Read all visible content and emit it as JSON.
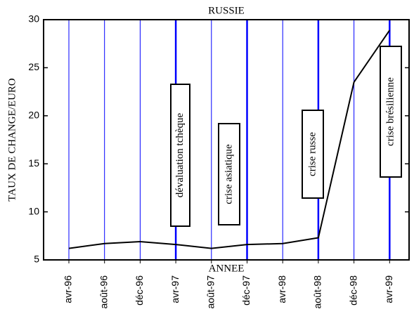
{
  "chart_data": {
    "type": "line",
    "title": "RUSSIE",
    "y_label": "TAUX DE CHANGE/EURO",
    "x_label": "ANNEE",
    "categories": [
      "avr-96",
      "août-96",
      "déc-96",
      "avr-97",
      "août-97",
      "déc-97",
      "avr-98",
      "août-98",
      "déc-98",
      "avr-99"
    ],
    "series": [
      {
        "name": "RUSSIE",
        "color": "#000000",
        "values": [
          6.2,
          6.7,
          6.9,
          6.6,
          6.2,
          6.6,
          6.7,
          7.3,
          23.5,
          28.9
        ]
      }
    ],
    "ylim": [
      5,
      30
    ],
    "yticks": [
      5,
      10,
      15,
      20,
      25,
      30
    ],
    "grid_color": "#0000ff",
    "annotations": [
      {
        "text": "dévaluation tchèque",
        "category": "avr-97"
      },
      {
        "text": "crise asiatique",
        "category": "déc-97"
      },
      {
        "text": "crise russe",
        "category": "août-98"
      },
      {
        "text": "crise brésilienne",
        "category": "avr-99"
      }
    ]
  }
}
